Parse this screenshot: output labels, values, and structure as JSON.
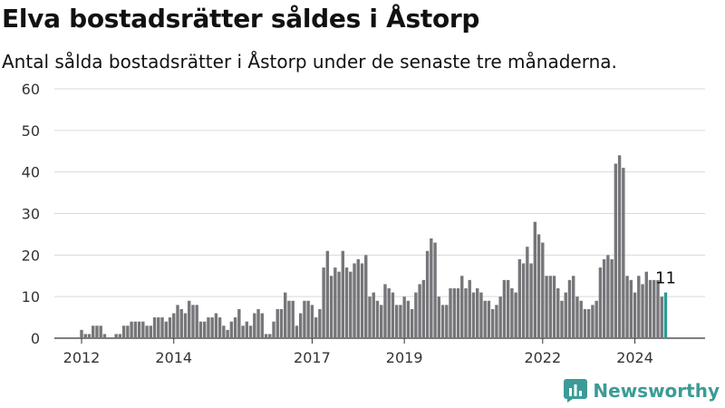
{
  "chart_data": {
    "type": "bar",
    "title": "Elva bostadsrätter såldes i Åstorp",
    "subtitle": "Antal sålda bostadsrätter i Åstorp under de senaste tre månaderna.",
    "ylim": [
      0,
      60
    ],
    "yticks": [
      0,
      10,
      20,
      30,
      40,
      50,
      60
    ],
    "xtick_labels": [
      "2012",
      "2014",
      "2017",
      "2019",
      "2022",
      "2024"
    ],
    "xtick_months": [
      0,
      24,
      60,
      84,
      120,
      144
    ],
    "start_month_offset": 0,
    "values": [
      2,
      1,
      1,
      3,
      3,
      3,
      1,
      0,
      0,
      1,
      1,
      3,
      3,
      4,
      4,
      4,
      4,
      3,
      3,
      5,
      5,
      5,
      4,
      5,
      6,
      8,
      7,
      6,
      9,
      8,
      8,
      4,
      4,
      5,
      5,
      6,
      5,
      3,
      2,
      4,
      5,
      7,
      3,
      4,
      3,
      6,
      7,
      6,
      1,
      1,
      4,
      7,
      7,
      11,
      9,
      9,
      3,
      6,
      9,
      9,
      8,
      5,
      7,
      17,
      21,
      15,
      17,
      16,
      21,
      17,
      16,
      18,
      19,
      18,
      20,
      10,
      11,
      9,
      8,
      13,
      12,
      11,
      8,
      8,
      10,
      9,
      7,
      11,
      13,
      14,
      21,
      24,
      23,
      10,
      8,
      8,
      12,
      12,
      12,
      15,
      12,
      14,
      11,
      12,
      11,
      9,
      9,
      7,
      8,
      10,
      14,
      14,
      12,
      11,
      19,
      18,
      22,
      18,
      28,
      25,
      23,
      15,
      15,
      15,
      12,
      9,
      11,
      14,
      15,
      10,
      9,
      7,
      7,
      8,
      9,
      17,
      19,
      20,
      19,
      42,
      44,
      41,
      15,
      14,
      11,
      15,
      13,
      16,
      14,
      14,
      14,
      10,
      11
    ],
    "highlight_last": true,
    "last_label": "11",
    "colors": {
      "bar": "#76767a",
      "highlight": "#2b9d98",
      "grid": "#d9d9d9",
      "axis": "#333333"
    }
  },
  "brand": {
    "name": "Newsworthy"
  }
}
